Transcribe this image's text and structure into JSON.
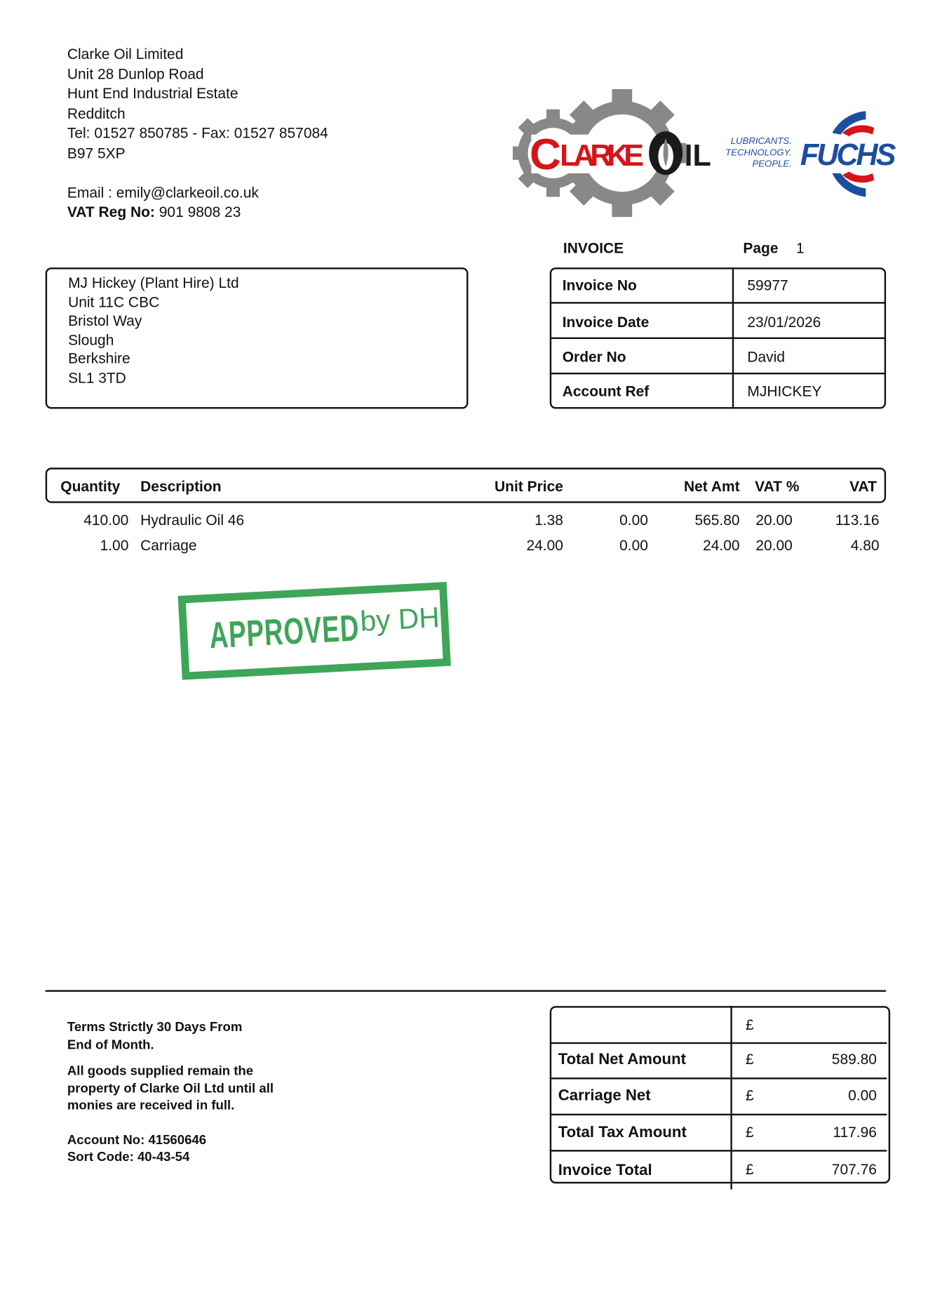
{
  "supplier": {
    "lines": [
      "Clarke Oil Limited",
      "Unit 28 Dunlop Road",
      "Hunt End Industrial Estate",
      "Redditch",
      "Tel: 01527 850785 - Fax: 01527 857084",
      "B97 5XP"
    ],
    "email": "Email : emily@clarkeoil.co.uk",
    "vat_label": "VAT Reg No:",
    "vat_value": "901 9808 23"
  },
  "logos": {
    "clarke": "CLARKE OIL",
    "fuchs": "FUCHS",
    "tagline": [
      "LUBRICANTS.",
      "TECHNOLOGY.",
      "PEOPLE."
    ],
    "colors": {
      "red": "#d7141a",
      "grey": "#878887",
      "blue": "#1c4ea0"
    }
  },
  "customer": {
    "lines": [
      "MJ Hickey (Plant Hire) Ltd",
      "Unit 11C CBC",
      "Bristol Way",
      "Slough",
      "Berkshire",
      "SL1 3TD"
    ]
  },
  "invoice": {
    "title": "INVOICE",
    "page_label": "Page",
    "page_value": "1",
    "fields": [
      {
        "label": "Invoice No",
        "value": "59977"
      },
      {
        "label": "Invoice Date",
        "value": "23/01/2026"
      },
      {
        "label": "Order No",
        "value": "David"
      },
      {
        "label": "Account Ref",
        "value": "MJHICKEY"
      }
    ]
  },
  "items": {
    "headers": {
      "quantity": "Quantity",
      "description": "Description",
      "unit_price": "Unit Price",
      "net_amt": "Net Amt",
      "vat_pct": "VAT %",
      "vat": "VAT"
    },
    "rows": [
      {
        "quantity": "410.00",
        "description": "Hydraulic Oil 46",
        "unit_price": "1.38",
        "discount": "0.00",
        "net_amt": "565.80",
        "vat_pct": "20.00",
        "vat": "113.16"
      },
      {
        "quantity": "1.00",
        "description": "Carriage",
        "unit_price": "24.00",
        "discount": "0.00",
        "net_amt": "24.00",
        "vat_pct": "20.00",
        "vat": "4.80"
      }
    ]
  },
  "stamp": {
    "text": "APPROVED",
    "suffix": "by DH",
    "color": "#2f9e4a"
  },
  "terms": {
    "lines1": [
      "Terms Strictly 30 Days From",
      "End of Month."
    ],
    "lines2": [
      "All goods supplied remain the",
      "property of Clarke Oil Ltd until all",
      "monies are received in full."
    ],
    "lines3": [
      "Account No: 41560646",
      "Sort Code: 40-43-54"
    ]
  },
  "totals": {
    "currency": "£",
    "rows": [
      {
        "label": "Total Net Amount",
        "value": "589.80"
      },
      {
        "label": "Carriage Net",
        "value": "0.00"
      },
      {
        "label": "Total Tax Amount",
        "value": "117.96"
      },
      {
        "label": "Invoice Total",
        "value": "707.76"
      }
    ]
  }
}
